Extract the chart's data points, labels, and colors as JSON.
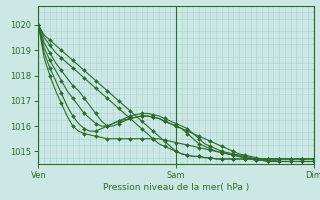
{
  "title": "",
  "xlabel": "Pression niveau de la mer( hPa )",
  "ylabel": "",
  "bg_color": "#cce8e4",
  "grid_color": "#a8d4ce",
  "line_color": "#2d6b2d",
  "xlim": [
    0,
    48
  ],
  "ylim": [
    1014.5,
    1020.5
  ],
  "yticks": [
    1015,
    1016,
    1017,
    1018,
    1019,
    1020
  ],
  "xtick_positions": [
    0,
    24,
    48
  ],
  "xtick_labels": [
    "Ven",
    "Sam",
    "Dim"
  ],
  "lines": [
    [
      1020.0,
      1019.6,
      1019.4,
      1019.2,
      1019.0,
      1018.8,
      1018.6,
      1018.4,
      1018.2,
      1018.0,
      1017.8,
      1017.6,
      1017.4,
      1017.2,
      1017.0,
      1016.8,
      1016.6,
      1016.4,
      1016.2,
      1016.0,
      1015.8,
      1015.6,
      1015.4,
      1015.2,
      1015.0,
      1014.9,
      1014.85,
      1014.8,
      1014.8,
      1014.75,
      1014.75,
      1014.7,
      1014.7,
      1014.7,
      1014.7,
      1014.7,
      1014.7,
      1014.7,
      1014.7,
      1014.7,
      1014.7,
      1014.7,
      1014.7,
      1014.7,
      1014.7,
      1014.7,
      1014.7,
      1014.7,
      1014.7
    ],
    [
      1020.0,
      1019.5,
      1019.2,
      1018.9,
      1018.7,
      1018.5,
      1018.3,
      1018.1,
      1017.9,
      1017.7,
      1017.5,
      1017.3,
      1017.1,
      1016.9,
      1016.7,
      1016.5,
      1016.3,
      1016.1,
      1015.9,
      1015.7,
      1015.5,
      1015.3,
      1015.2,
      1015.1,
      1015.0,
      1014.9,
      1014.85,
      1014.8,
      1014.8,
      1014.75,
      1014.75,
      1014.7,
      1014.7,
      1014.7,
      1014.7,
      1014.7,
      1014.7,
      1014.7,
      1014.7,
      1014.7,
      1014.7,
      1014.7,
      1014.7,
      1014.7,
      1014.7,
      1014.7,
      1014.7,
      1014.7,
      1014.7
    ],
    [
      1020.0,
      1019.3,
      1018.9,
      1018.5,
      1018.2,
      1017.9,
      1017.6,
      1017.4,
      1017.1,
      1016.8,
      1016.5,
      1016.2,
      1016.0,
      1016.0,
      1016.1,
      1016.2,
      1016.3,
      1016.35,
      1016.4,
      1016.4,
      1016.35,
      1016.3,
      1016.2,
      1016.1,
      1016.0,
      1015.9,
      1015.8,
      1015.7,
      1015.6,
      1015.5,
      1015.4,
      1015.3,
      1015.2,
      1015.1,
      1015.0,
      1014.9,
      1014.85,
      1014.8,
      1014.75,
      1014.7,
      1014.7,
      1014.7,
      1014.7,
      1014.7,
      1014.7,
      1014.7,
      1014.7,
      1014.7,
      1014.7
    ],
    [
      1020.0,
      1019.1,
      1018.6,
      1018.2,
      1017.8,
      1017.4,
      1017.1,
      1016.8,
      1016.5,
      1016.3,
      1016.1,
      1016.0,
      1016.0,
      1016.1,
      1016.2,
      1016.3,
      1016.4,
      1016.45,
      1016.5,
      1016.5,
      1016.45,
      1016.4,
      1016.3,
      1016.2,
      1016.1,
      1016.0,
      1015.9,
      1015.7,
      1015.5,
      1015.3,
      1015.2,
      1015.1,
      1015.0,
      1014.95,
      1014.9,
      1014.85,
      1014.8,
      1014.75,
      1014.7,
      1014.7,
      1014.65,
      1014.65,
      1014.6,
      1014.6,
      1014.6,
      1014.6,
      1014.6,
      1014.6,
      1014.6
    ],
    [
      1020.0,
      1018.9,
      1018.3,
      1017.8,
      1017.3,
      1016.8,
      1016.4,
      1016.1,
      1015.9,
      1015.8,
      1015.8,
      1015.9,
      1016.0,
      1016.1,
      1016.2,
      1016.25,
      1016.3,
      1016.35,
      1016.4,
      1016.4,
      1016.35,
      1016.3,
      1016.2,
      1016.1,
      1016.0,
      1015.9,
      1015.7,
      1015.5,
      1015.3,
      1015.2,
      1015.1,
      1015.0,
      1014.95,
      1014.9,
      1014.85,
      1014.8,
      1014.75,
      1014.7,
      1014.65,
      1014.65,
      1014.6,
      1014.6,
      1014.6,
      1014.6,
      1014.6,
      1014.6,
      1014.6,
      1014.6,
      1014.6
    ],
    [
      1020.0,
      1018.7,
      1018.0,
      1017.4,
      1016.9,
      1016.4,
      1016.0,
      1015.8,
      1015.7,
      1015.65,
      1015.6,
      1015.55,
      1015.5,
      1015.5,
      1015.5,
      1015.5,
      1015.5,
      1015.5,
      1015.5,
      1015.5,
      1015.5,
      1015.5,
      1015.45,
      1015.4,
      1015.35,
      1015.3,
      1015.25,
      1015.2,
      1015.15,
      1015.1,
      1015.05,
      1015.0,
      1014.95,
      1014.9,
      1014.85,
      1014.8,
      1014.75,
      1014.7,
      1014.65,
      1014.65,
      1014.6,
      1014.6,
      1014.6,
      1014.6,
      1014.6,
      1014.6,
      1014.6,
      1014.6,
      1014.6
    ]
  ]
}
